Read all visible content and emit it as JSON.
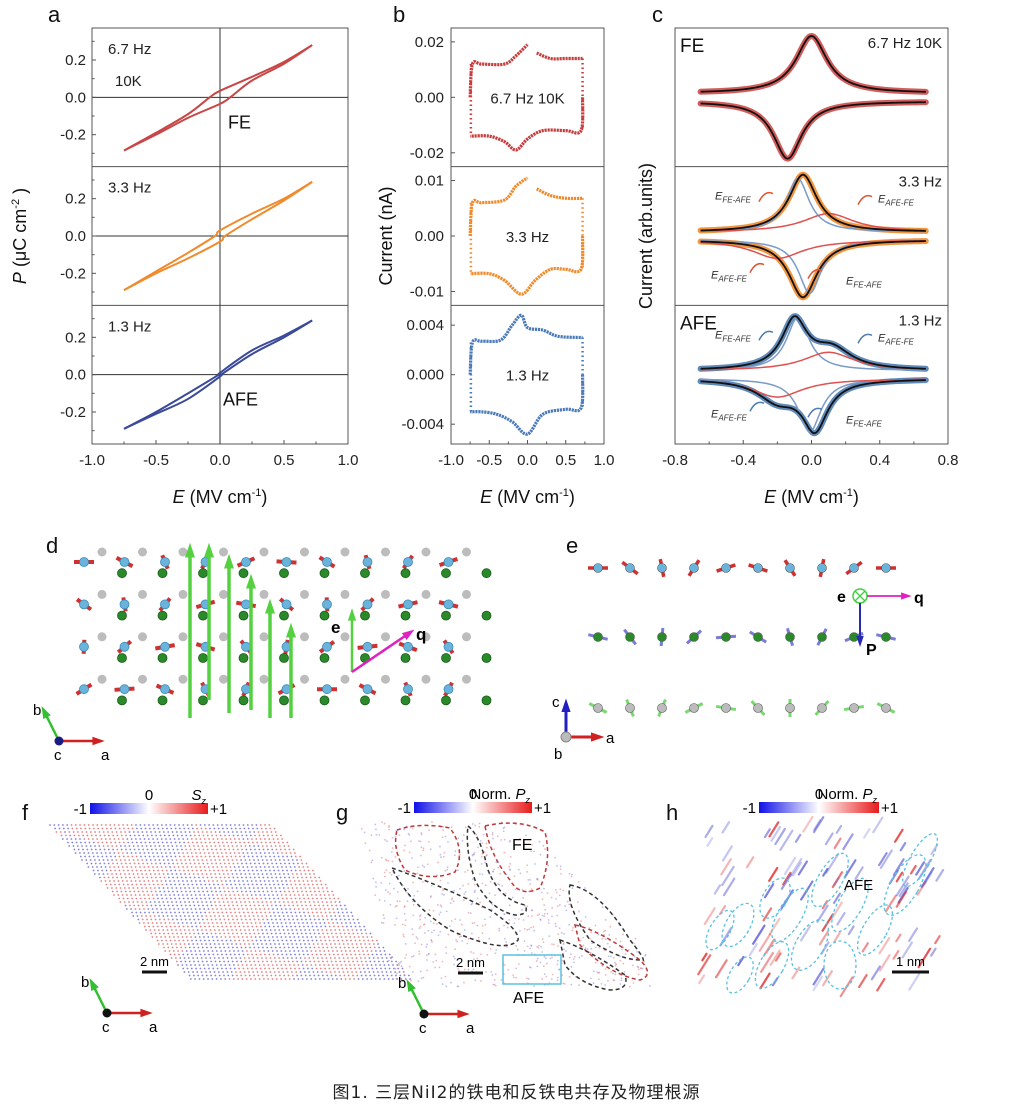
{
  "figure": {
    "caption": "图1. 三层NiI2的铁电和反铁电共存及物理根源",
    "panel_letters": [
      "a",
      "b",
      "c",
      "d",
      "e",
      "f",
      "g",
      "h"
    ]
  },
  "chart_data": [
    {
      "id": "a",
      "type": "line",
      "title": "P-E hysteresis loops",
      "xlabel": "E (MV cm⁻¹)",
      "ylabel": "P (μC cm⁻²)",
      "xlim": [
        -1.0,
        1.0
      ],
      "xticks": [
        "-1.0",
        "-0.5",
        "0.0",
        "0.5",
        "1.0"
      ],
      "subpanels": [
        {
          "label": "6.7 Hz",
          "temp": "10K",
          "phase": "FE",
          "color": "#c84646",
          "ylim": [
            -0.35,
            0.35
          ],
          "yticks": [
            "0.2",
            "0.0",
            "-0.2"
          ],
          "upper": {
            "x": [
              -0.75,
              -0.5,
              -0.25,
              -0.08,
              0.0,
              0.25,
              0.5,
              0.72
            ],
            "y": [
              -0.285,
              -0.19,
              -0.09,
              0.0,
              0.035,
              0.11,
              0.19,
              0.28
            ]
          },
          "lower": {
            "x": [
              -0.75,
              -0.5,
              -0.25,
              0.0,
              0.08,
              0.25,
              0.5,
              0.72
            ],
            "y": [
              -0.285,
              -0.2,
              -0.11,
              -0.035,
              0.0,
              0.09,
              0.18,
              0.28
            ]
          }
        },
        {
          "label": "3.3 Hz",
          "temp": "",
          "phase": "",
          "color": "#f08a2a",
          "ylim": [
            -0.35,
            0.35
          ],
          "yticks": [
            "0.2",
            "0.0",
            "-0.2"
          ],
          "upper": {
            "x": [
              -0.75,
              -0.5,
              -0.25,
              -0.04,
              0.0,
              0.25,
              0.5,
              0.72
            ],
            "y": [
              -0.29,
              -0.19,
              -0.09,
              0.0,
              0.03,
              0.12,
              0.2,
              0.29
            ]
          },
          "lower": {
            "x": [
              -0.75,
              -0.5,
              -0.25,
              0.0,
              0.04,
              0.25,
              0.5,
              0.72
            ],
            "y": [
              -0.29,
              -0.2,
              -0.12,
              -0.03,
              0.0,
              0.09,
              0.19,
              0.29
            ]
          }
        },
        {
          "label": "1.3 Hz",
          "temp": "",
          "phase": "AFE",
          "color": "#3a4a9a",
          "ylim": [
            -0.35,
            0.35
          ],
          "yticks": [
            "0.2",
            "0.0",
            "-0.2"
          ],
          "upper": {
            "x": [
              -0.75,
              -0.5,
              -0.25,
              -0.01,
              0.0,
              0.25,
              0.5,
              0.72
            ],
            "y": [
              -0.29,
              -0.2,
              -0.1,
              0.0,
              0.01,
              0.13,
              0.21,
              0.29
            ]
          },
          "lower": {
            "x": [
              -0.75,
              -0.5,
              -0.25,
              0.0,
              0.01,
              0.25,
              0.5,
              0.72
            ],
            "y": [
              -0.29,
              -0.21,
              -0.13,
              -0.01,
              0.0,
              0.11,
              0.2,
              0.29
            ]
          }
        }
      ]
    },
    {
      "id": "b",
      "type": "scatter",
      "title": "I-E switching current",
      "xlabel": "E (MV cm⁻¹)",
      "ylabel": "Current (nA)",
      "xlim": [
        -1.0,
        1.0
      ],
      "xticks": [
        "-1.0",
        "-0.5",
        "0.0",
        "0.5",
        "1.0"
      ],
      "subpanels": [
        {
          "label": "6.7 Hz  10K",
          "color": "#c83c3c",
          "ylim": [
            -0.025,
            0.025
          ],
          "yticks": [
            "0.02",
            "0.00",
            "-0.02"
          ],
          "ytick_values": [
            0.02,
            0.0,
            -0.02
          ],
          "upper": {
            "x": [
              -0.75,
              -0.72,
              -0.6,
              -0.3,
              -0.15,
              0.0
            ],
            "y": [
              0.0,
              0.012,
              0.012,
              0.012,
              0.015,
              0.019
            ]
          },
          "upper2": {
            "x": [
              0.12,
              0.3,
              0.5,
              0.72
            ],
            "y": [
              0.016,
              0.014,
              0.014,
              0.014
            ]
          },
          "lower": {
            "x": [
              0.72,
              0.7,
              0.5,
              0.2,
              0.0,
              -0.15,
              -0.3,
              -0.5,
              -0.75
            ],
            "y": [
              0.0,
              -0.012,
              -0.012,
              -0.012,
              -0.015,
              -0.019,
              -0.016,
              -0.014,
              -0.014
            ]
          }
        },
        {
          "label": "3.3 Hz",
          "color": "#f08a2a",
          "ylim": [
            -0.0125,
            0.0125
          ],
          "yticks": [
            "0.01",
            "0.00",
            "-0.01"
          ],
          "ytick_values": [
            0.01,
            0.0,
            -0.01
          ],
          "upper": {
            "x": [
              -0.75,
              -0.72,
              -0.6,
              -0.3,
              -0.15,
              0.0
            ],
            "y": [
              0.0,
              0.006,
              0.006,
              0.0065,
              0.009,
              0.0105
            ]
          },
          "upper2": {
            "x": [
              0.12,
              0.3,
              0.5,
              0.72
            ],
            "y": [
              0.0085,
              0.0073,
              0.0068,
              0.0068
            ]
          },
          "lower": {
            "x": [
              0.72,
              0.7,
              0.5,
              0.3,
              0.1,
              -0.08,
              -0.3,
              -0.5,
              -0.75
            ],
            "y": [
              0.0,
              -0.006,
              -0.006,
              -0.006,
              -0.008,
              -0.0105,
              -0.008,
              -0.0068,
              -0.0068
            ]
          }
        },
        {
          "label": "1.3 Hz",
          "color": "#4a7ab8",
          "ylim": [
            -0.0056,
            0.0056
          ],
          "yticks": [
            "0.004",
            "0.000",
            "-0.004"
          ],
          "ytick_values": [
            0.004,
            0.0,
            -0.004
          ],
          "upper": {
            "x": [
              -0.75,
              -0.72,
              -0.6,
              -0.35,
              -0.2,
              -0.08,
              0.0,
              0.2,
              0.4,
              0.72
            ],
            "y": [
              0.0,
              0.0026,
              0.0027,
              0.0028,
              0.004,
              0.0048,
              0.0038,
              0.0036,
              0.0031,
              0.003
            ]
          },
          "lower": {
            "x": [
              0.72,
              0.7,
              0.5,
              0.2,
              0.0,
              -0.2,
              -0.4,
              -0.6,
              -0.75
            ],
            "y": [
              0.0,
              -0.0027,
              -0.0028,
              -0.0032,
              -0.0048,
              -0.0038,
              -0.0032,
              -0.003,
              -0.003
            ]
          }
        }
      ]
    },
    {
      "id": "c",
      "type": "line",
      "title": "Current fitting",
      "xlabel": "E (MV cm⁻¹)",
      "ylabel": "Current (arb.units)",
      "xlim": [
        -0.8,
        0.8
      ],
      "xticks": [
        "-0.8",
        "-0.4",
        "0.0",
        "0.4",
        "0.8"
      ],
      "subpanels": [
        {
          "label": "6.7 Hz   10K",
          "phase": "FE",
          "color": "#cc4a48",
          "peak_pos": [
            0.0,
            -0.14
          ],
          "annotations": []
        },
        {
          "label": "3.3 Hz",
          "phase": "",
          "color": "#f08a2a",
          "peak_pos": [
            -0.05,
            -0.05
          ],
          "annotations": [
            "E_FE-AFE",
            "E_AFE-FE",
            "E_AFE-FE",
            "E_FE-AFE"
          ]
        },
        {
          "label": "1.3 Hz",
          "phase": "AFE",
          "color": "#4e7cb0",
          "peak_pos": [
            -0.1,
            0.02
          ],
          "annotations": [
            "E_FE-AFE",
            "E_AFE-FE",
            "E_AFE-FE",
            "E_FE-AFE"
          ]
        }
      ]
    }
  ],
  "structures": {
    "d": {
      "axes": [
        "b",
        "c",
        "a"
      ],
      "labels": [
        "e",
        "q"
      ]
    },
    "e": {
      "axes": [
        "c",
        "b",
        "a"
      ],
      "labels": [
        "e",
        "q",
        "P"
      ]
    },
    "f": {
      "colorbar": {
        "min": "-1",
        "mid": "0",
        "max": "+1",
        "title": "S",
        "title_sub": "z"
      },
      "scalebar": "2 nm",
      "axes": [
        "b",
        "c",
        "a"
      ]
    },
    "g": {
      "colorbar": {
        "min": "-1",
        "mid": "0",
        "max": "+1",
        "title": "Norm. P",
        "title_sub": "z"
      },
      "scalebar": "2 nm",
      "regions": [
        "FE",
        "AFE"
      ],
      "axes": [
        "b",
        "c",
        "a"
      ]
    },
    "h": {
      "colorbar": {
        "min": "-1",
        "mid": "0",
        "max": "+1",
        "title": "Norm. P",
        "title_sub": "z"
      },
      "scalebar": "1 nm",
      "regions": [
        "AFE"
      ]
    }
  },
  "colors": {
    "red": "#c84646",
    "orange": "#f08a2a",
    "navy": "#3a4a9a",
    "blue": "#4a7ab8",
    "fit_black": "#111111",
    "fit_red": "#e05050",
    "fit_blue": "#7a9ac8",
    "ni_atom": "#6ab4dc",
    "i_green": "#2a8a2a",
    "i_gray": "#bcbcbc",
    "arrow_red": "#d03030",
    "arrow_green": "#55d040",
    "magenta": "#e020c0",
    "cyan_box": "#5ac0e0"
  }
}
